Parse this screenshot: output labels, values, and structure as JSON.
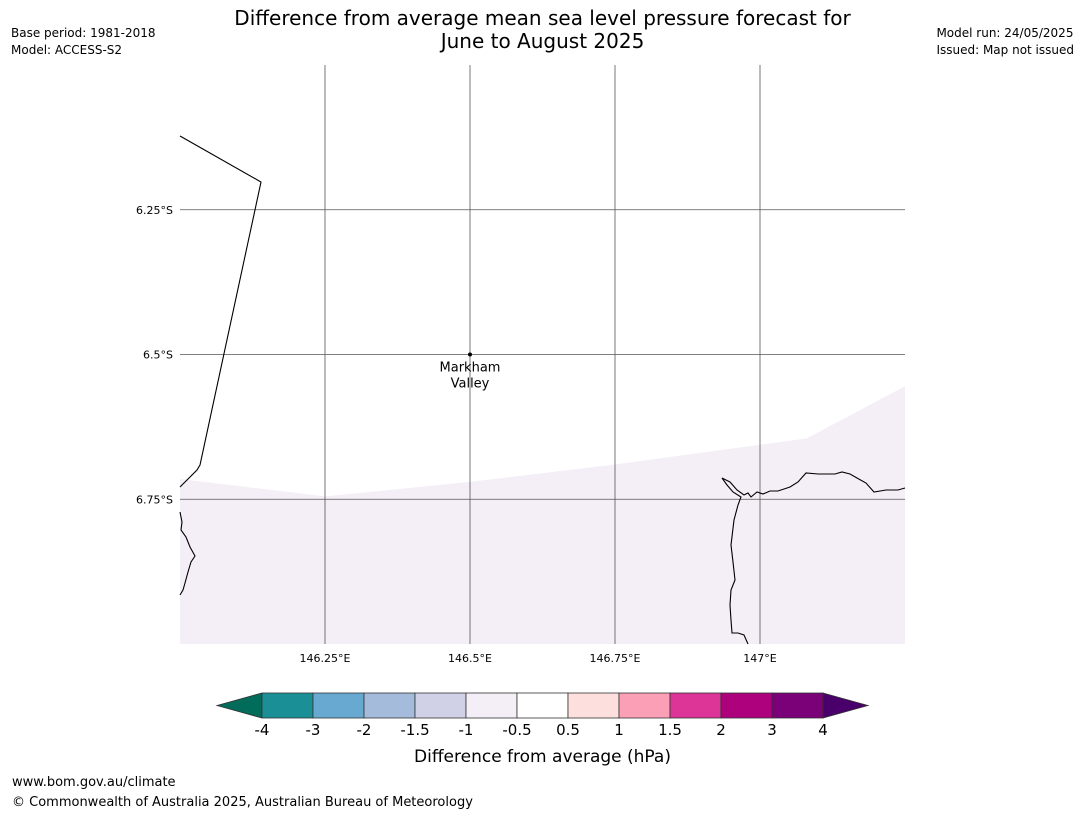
{
  "header": {
    "title_line1": "Difference from average mean sea level pressure forecast for",
    "title_line2": "June to August 2025",
    "base_period": "Base period: 1981-2018",
    "model": "Model: ACCESS-S2",
    "model_run": "Model run: 24/05/2025",
    "issued": "Issued: Map not issued"
  },
  "map": {
    "lon_range": [
      146.0,
      147.25
    ],
    "lat_range": [
      -7.0,
      -6.0
    ],
    "lat_ticks": [
      {
        "value": -6.25,
        "label": "6.25°S"
      },
      {
        "value": -6.5,
        "label": "6.5°S"
      },
      {
        "value": -6.75,
        "label": "6.75°S"
      }
    ],
    "lon_ticks": [
      {
        "value": 146.25,
        "label": "146.25°E"
      },
      {
        "value": 146.5,
        "label": "146.5°E"
      },
      {
        "value": 146.75,
        "label": "146.75°E"
      },
      {
        "value": 147.0,
        "label": "147°E"
      }
    ],
    "place": {
      "name_line1": "Markham",
      "name_line2": "Valley",
      "lon": 146.5,
      "lat": -6.5
    },
    "shaded_region": {
      "category": "-1 to -0.5",
      "color": "#f4eef6",
      "boundary": [
        [
          146.0,
          -6.715
        ],
        [
          146.25,
          -6.745
        ],
        [
          146.5,
          -6.72
        ],
        [
          146.75,
          -6.69
        ],
        [
          147.08,
          -6.645
        ],
        [
          147.25,
          -6.555
        ]
      ]
    }
  },
  "colorbar": {
    "label": "Difference from average (hPa)",
    "tick_labels": [
      "-4",
      "-3",
      "-2",
      "-1.5",
      "-1",
      "-0.5",
      "0.5",
      "1",
      "1.5",
      "2",
      "3",
      "4"
    ],
    "colors": [
      "#1a8f96",
      "#68a9d1",
      "#a5bbdb",
      "#d0d0e6",
      "#f4eef6",
      "#ffffff",
      "#fde0dd",
      "#fa9fb5",
      "#dd3497",
      "#ae017e",
      "#7a0177"
    ],
    "extend_low_color": "#016c59",
    "extend_high_color": "#49006a"
  },
  "footer": {
    "url": "www.bom.gov.au/climate",
    "copyright": "© Commonwealth of Australia 2025, Australian Bureau of Meteorology"
  }
}
